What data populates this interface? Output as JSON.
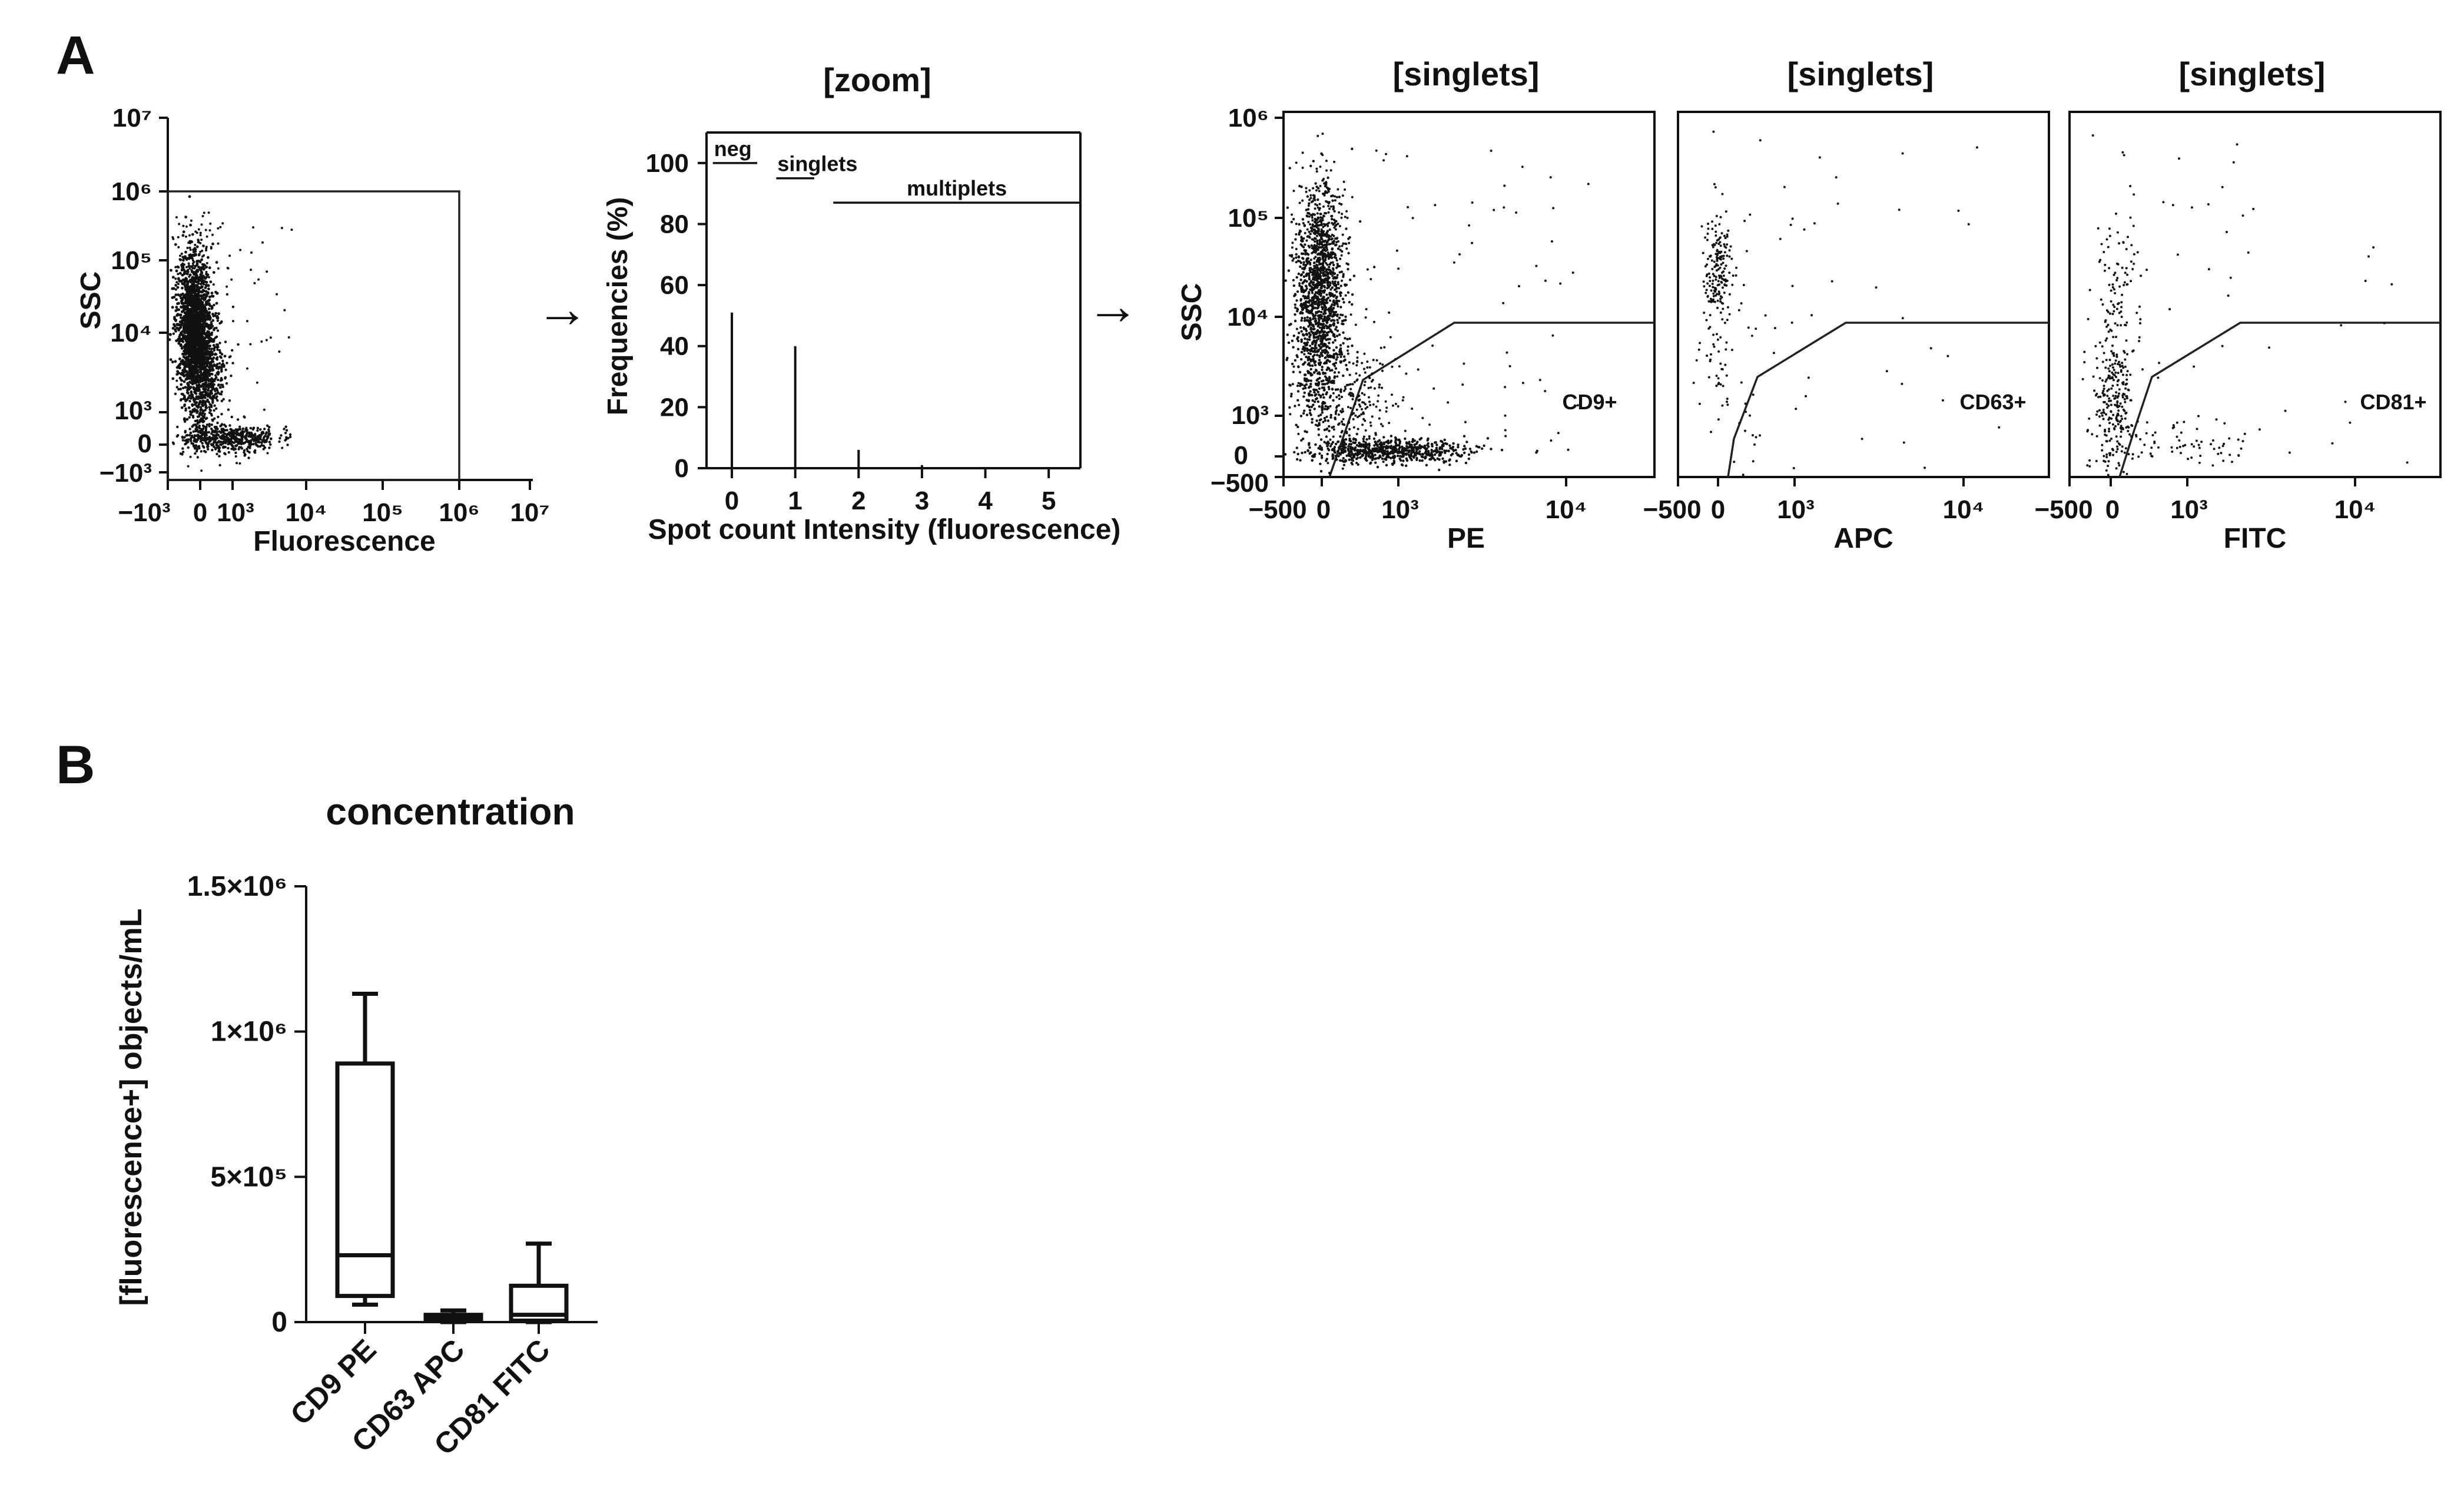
{
  "panel_labels": {
    "a": "A",
    "b": "B"
  },
  "arrows": [
    "→",
    "→"
  ],
  "chart_data": [
    {
      "id": "fluor_vs_ssc",
      "type": "scatter",
      "title": "",
      "xlabel": "Fluorescence",
      "ylabel": "SSC",
      "x_scale": "biexponential",
      "y_scale": "biexponential",
      "x_ticks": [
        "−10³",
        "0",
        "10³",
        "10⁴",
        "10⁵",
        "10⁶",
        "10⁷"
      ],
      "y_ticks": [
        "10⁷",
        "10⁶",
        "10⁵",
        "10⁴",
        "10³",
        "0",
        "−10³"
      ],
      "xlim": [
        -1000,
        10000000
      ],
      "ylim": [
        -1000,
        10000000
      ],
      "gate": {
        "shape": "rectangle",
        "x_range": [
          -1000,
          1000000
        ],
        "y_range": [
          -1000,
          1000000
        ]
      },
      "events": "dense cluster at fluorescence ≈ 0, SSC ≈ 10³–10⁵, tail along fluorescence to ≈ 10³–10⁴ at low SSC"
    },
    {
      "id": "zoom",
      "type": "bar",
      "title": "[zoom]",
      "xlabel": "Spot count Intensity (fluorescence)",
      "ylabel": "Frequencies (%)",
      "categories": [
        "0",
        "1",
        "2",
        "3",
        "4",
        "5"
      ],
      "values": [
        51,
        40,
        6,
        1,
        0,
        0
      ],
      "x_ticks": [
        "0",
        "1",
        "2",
        "3",
        "4",
        "5"
      ],
      "y_ticks": [
        "0",
        "20",
        "40",
        "60",
        "80",
        "100"
      ],
      "ylim": [
        0,
        110
      ],
      "xlim": [
        -0.4,
        5.5
      ],
      "annotations": [
        {
          "text": "neg",
          "x_range": [
            -0.3,
            0.4
          ],
          "y": 100
        },
        {
          "text": "singlets",
          "x_range": [
            0.7,
            1.3
          ],
          "y": 95
        },
        {
          "text": "multiplets",
          "x_range": [
            1.6,
            5.5
          ],
          "y": 87
        }
      ]
    },
    {
      "id": "pe_singlets",
      "type": "scatter",
      "title": "[singlets]",
      "xlabel": "PE",
      "ylabel": "SSC",
      "x_ticks": [
        "−500",
        "0",
        "10³",
        "10⁴"
      ],
      "y_ticks": [
        "10⁶",
        "10⁵",
        "10⁴",
        "10³",
        "0",
        "−500"
      ],
      "gate_label": "CD9+",
      "events": "dense cluster near PE ≈ 0, SSC ≈ 10³–10⁵ plus horizontal tail at low SSC out to PE ≈ 5×10³"
    },
    {
      "id": "apc_singlets",
      "type": "scatter",
      "title": "[singlets]",
      "xlabel": "APC",
      "ylabel": "",
      "x_ticks": [
        "−500",
        "0",
        "10³",
        "10⁴"
      ],
      "gate_label": "CD63+",
      "events": "small cluster near APC ≈ 0, SSC ≈ 10⁴–10⁵, sparse scatter elsewhere"
    },
    {
      "id": "fitc_singlets",
      "type": "scatter",
      "title": "[singlets]",
      "xlabel": "FITC",
      "ylabel": "",
      "x_ticks": [
        "−500",
        "0",
        "10³",
        "10⁴"
      ],
      "gate_label": "CD81+",
      "events": "sparse cluster near FITC ≈ 0–10³, SSC ≈ 10²–10⁴"
    },
    {
      "id": "concentration",
      "type": "box",
      "title": "concentration",
      "xlabel": "",
      "ylabel": "[fluorescence+] objects/mL",
      "categories": [
        "CD9 PE",
        "CD63 APC",
        "CD81 FITC"
      ],
      "series": [
        {
          "category": "CD9 PE",
          "min": 60000,
          "q1": 90000,
          "median": 230000,
          "q3": 890000,
          "max": 1130000
        },
        {
          "category": "CD63 APC",
          "min": 0,
          "q1": 5000,
          "median": 15000,
          "q3": 25000,
          "max": 40000
        },
        {
          "category": "CD81 FITC",
          "min": 0,
          "q1": 5000,
          "median": 25000,
          "q3": 125000,
          "max": 270000
        }
      ],
      "y_ticks": [
        "0",
        "5×10⁵",
        "1×10⁶",
        "1.5×10⁶"
      ],
      "ylim": [
        0,
        1500000
      ]
    }
  ]
}
